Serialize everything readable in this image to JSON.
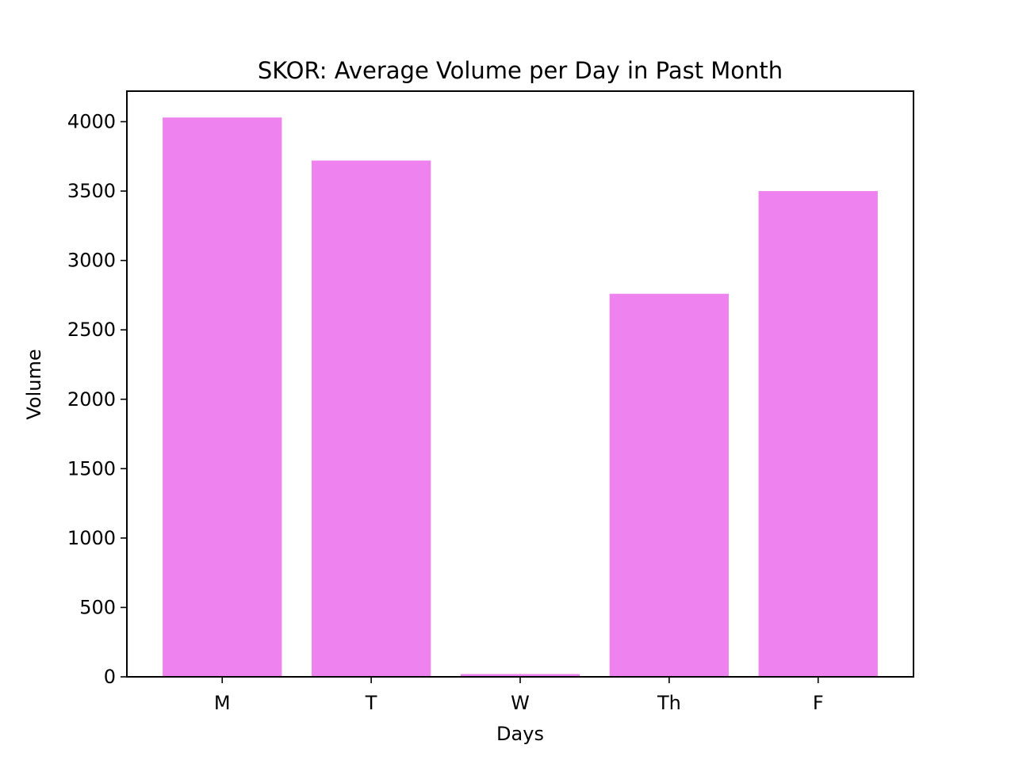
{
  "chart_data": {
    "type": "bar",
    "title": "SKOR: Average Volume per Day in Past Month",
    "xlabel": "Days",
    "ylabel": "Volume",
    "categories": [
      "M",
      "T",
      "W",
      "Th",
      "F"
    ],
    "values": [
      4030,
      3720,
      20,
      2760,
      3500
    ],
    "ylim": [
      0,
      4220
    ],
    "yticks": [
      0,
      500,
      1000,
      1500,
      2000,
      2500,
      3000,
      3500,
      4000
    ],
    "ytick_labels": [
      "0",
      "500",
      "1000",
      "1500",
      "2000",
      "2500",
      "3000",
      "3500",
      "4000"
    ],
    "bar_color": "#ee82ee",
    "grid": false,
    "legend": "none"
  }
}
